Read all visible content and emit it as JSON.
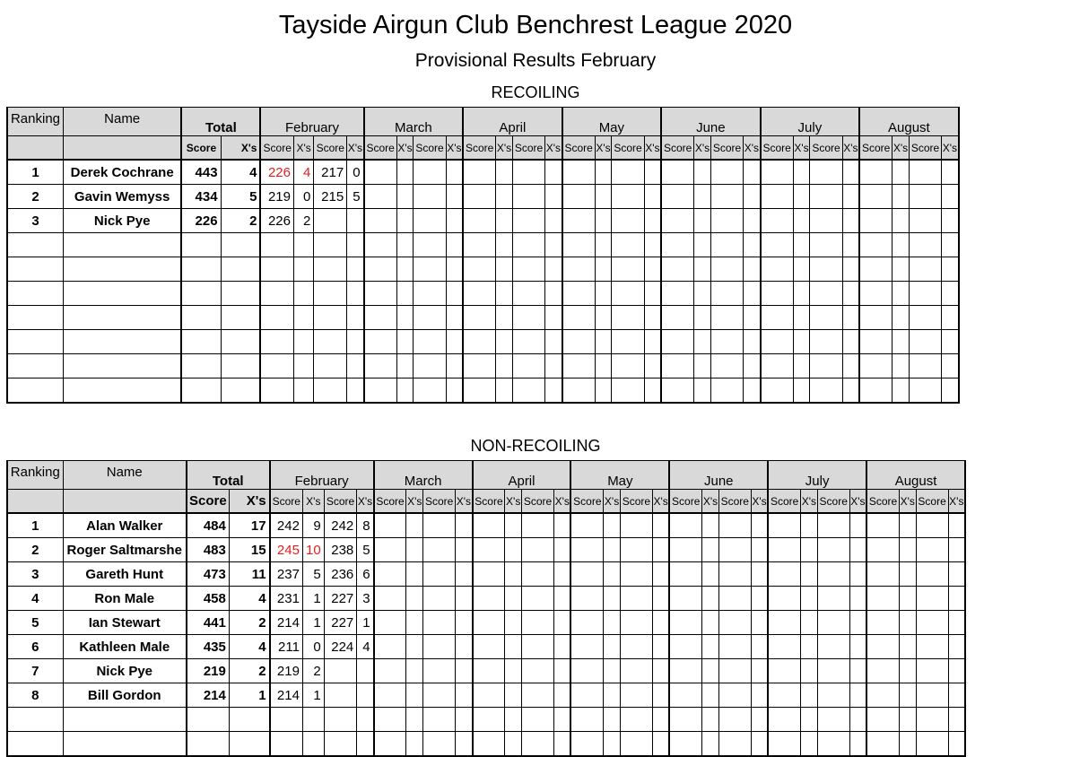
{
  "title": "Tayside Airgun Club Benchrest League 2020",
  "subtitle": "Provisional Results February",
  "header": {
    "ranking": "Ranking",
    "name": "Name",
    "total": "Total",
    "score": "Score",
    "xs": "X's",
    "months": [
      "February",
      "March",
      "April",
      "May",
      "June",
      "July",
      "August"
    ]
  },
  "recoiling": {
    "title": "RECOILING",
    "rows": [
      {
        "rank": "1",
        "name": "Derek Cochrane",
        "total_score": "443",
        "total_xs": "4",
        "feb": [
          {
            "score": "226",
            "xs": "4",
            "highlight": true
          },
          {
            "score": "217",
            "xs": "0"
          }
        ]
      },
      {
        "rank": "2",
        "name": "Gavin Wemyss",
        "total_score": "434",
        "total_xs": "5",
        "feb": [
          {
            "score": "219",
            "xs": "0"
          },
          {
            "score": "215",
            "xs": "5"
          }
        ]
      },
      {
        "rank": "3",
        "name": "Nick Pye",
        "total_score": "226",
        "total_xs": "2",
        "feb": [
          {
            "score": "226",
            "xs": "2"
          }
        ]
      }
    ],
    "empty_rows": 7
  },
  "nonrecoiling": {
    "title": "NON-RECOILING",
    "rows": [
      {
        "rank": "1",
        "name": "Alan Walker",
        "total_score": "484",
        "total_xs": "17",
        "feb": [
          {
            "score": "242",
            "xs": "9"
          },
          {
            "score": "242",
            "xs": "8"
          }
        ]
      },
      {
        "rank": "2",
        "name": "Roger Saltmarshe",
        "total_score": "483",
        "total_xs": "15",
        "feb": [
          {
            "score": "245",
            "xs": "10",
            "highlight": true
          },
          {
            "score": "238",
            "xs": "5"
          }
        ]
      },
      {
        "rank": "3",
        "name": "Gareth Hunt",
        "total_score": "473",
        "total_xs": "11",
        "feb": [
          {
            "score": "237",
            "xs": "5"
          },
          {
            "score": "236",
            "xs": "6"
          }
        ]
      },
      {
        "rank": "4",
        "name": "Ron Male",
        "total_score": "458",
        "total_xs": "4",
        "feb": [
          {
            "score": "231",
            "xs": "1"
          },
          {
            "score": "227",
            "xs": "3"
          }
        ]
      },
      {
        "rank": "5",
        "name": "Ian Stewart",
        "total_score": "441",
        "total_xs": "2",
        "feb": [
          {
            "score": "214",
            "xs": "1"
          },
          {
            "score": "227",
            "xs": "1"
          }
        ]
      },
      {
        "rank": "6",
        "name": "Kathleen Male",
        "total_score": "435",
        "total_xs": "4",
        "feb": [
          {
            "score": "211",
            "xs": "0"
          },
          {
            "score": "224",
            "xs": "4"
          }
        ]
      },
      {
        "rank": "7",
        "name": "Nick Pye",
        "total_score": "219",
        "total_xs": "2",
        "feb": [
          {
            "score": "219",
            "xs": "2"
          }
        ]
      },
      {
        "rank": "8",
        "name": "Bill Gordon",
        "total_score": "214",
        "total_xs": "1",
        "feb": [
          {
            "score": "214",
            "xs": "1"
          }
        ]
      }
    ],
    "empty_rows": 2
  },
  "colors": {
    "header_bg": "#d9d9d9",
    "highlight": "#e02020"
  }
}
